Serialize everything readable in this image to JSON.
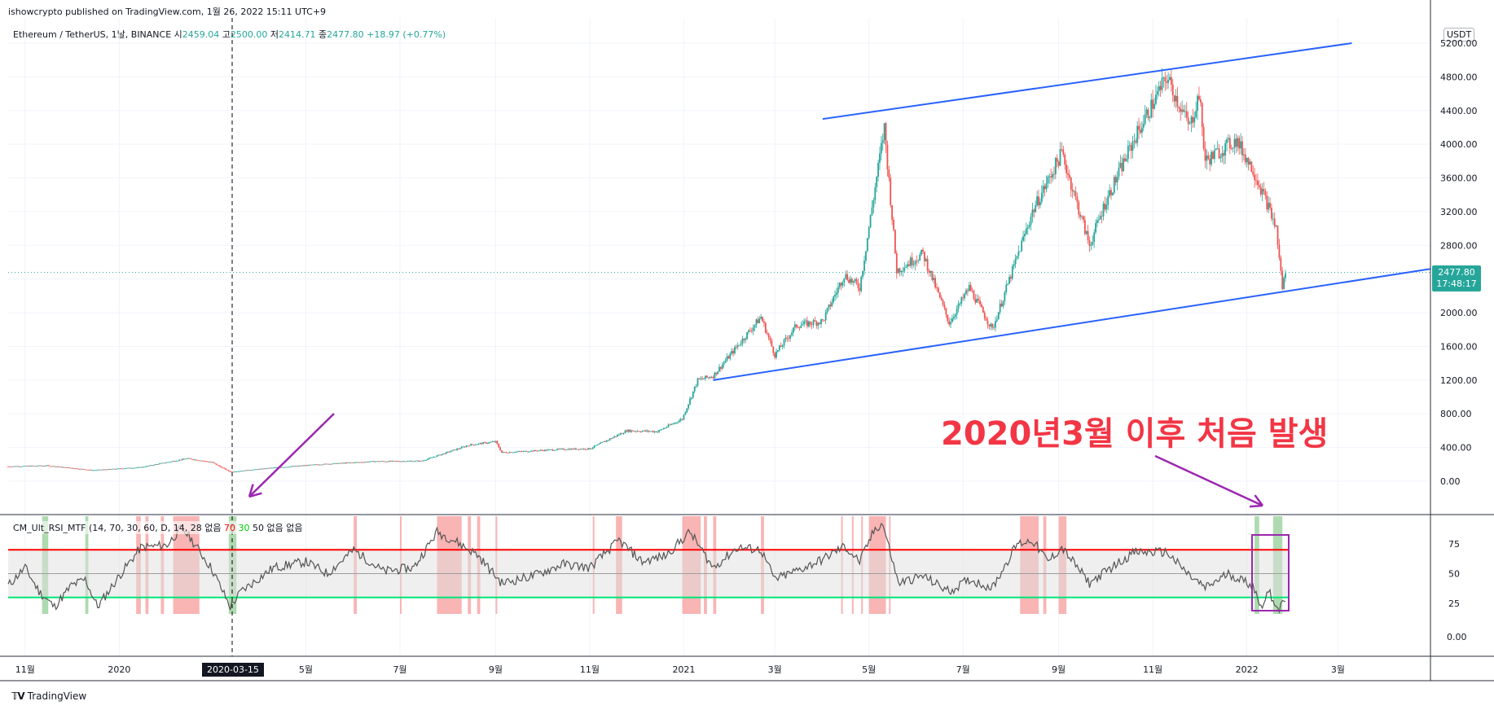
{
  "publish_line": "ishowcrypto published on TradingView.com, 1월 26, 2022 15:11 UTC+9",
  "legend": {
    "symbol": "Ethereum / TetherUS, 1날, BINANCE",
    "open_label": "시",
    "open": "2459.04",
    "high_label": "고",
    "high": "2500.00",
    "low_label": "저",
    "low": "2414.71",
    "close_label": "종",
    "close": "2477.80",
    "change": "+18.97 (+0.77%)"
  },
  "currency": "USDT",
  "last_price": {
    "value": "2477.80",
    "countdown": "17:48:17",
    "color": "#26a69a"
  },
  "crosshair_date": "2020-03-15",
  "annotation": "2020년3월 이후 처음 발생",
  "indicator_legend": {
    "name": "CM_Ult_RSI_MTF",
    "params": "(14, 70, 30, 60, D, 14, 28",
    "none1": "없음",
    "v70": "70",
    "v30": "30",
    "v50": "50",
    "none2": "없음",
    "none3": "없음"
  },
  "footer": {
    "brand": "TradingView"
  },
  "colors": {
    "up": "#26a69a",
    "down": "#ef5350",
    "trendline": "#2962ff",
    "arrow": "#9c27b0",
    "rsi_line": "#555555",
    "overbought": "#ff0000",
    "oversold": "#00e676",
    "band_fill": "#e0e0e0",
    "highlight_red": "#f8a1a1",
    "highlight_green": "#a5d6a7"
  },
  "chart_data": [
    {
      "type": "candlestick",
      "title": "Ethereum / TetherUS, 1날, BINANCE",
      "y_axis_ticks": [
        0,
        400,
        800,
        1200,
        1600,
        2000,
        2400,
        2800,
        3200,
        3600,
        4000,
        4400,
        4800,
        5200
      ],
      "y_tick_labels": [
        "0.00",
        "400.00",
        "800.00",
        "1200.00",
        "1600.00",
        "2000.00",
        "2400.00",
        "2800.00",
        "3200.00",
        "3600.00",
        "4000.00",
        "4400.00",
        "4800.00",
        "5200.00"
      ],
      "ylim": [
        -300,
        5300
      ],
      "x_tick_labels": [
        "11월",
        "2020",
        "5월",
        "7월",
        "9월",
        "11월",
        "2021",
        "3월",
        "5월",
        "7월",
        "9월",
        "11월",
        "2022",
        "3월"
      ],
      "x_tick_dates": [
        "2019-11-01",
        "2020-01-01",
        "2020-05-01",
        "2020-07-01",
        "2020-09-01",
        "2020-11-01",
        "2021-01-01",
        "2021-03-01",
        "2021-05-01",
        "2021-07-01",
        "2021-09-01",
        "2021-11-01",
        "2022-01-01",
        "2022-03-01"
      ],
      "xlim": [
        "2019-10-21",
        "2022-04-30"
      ],
      "price_points": [
        [
          "2019-10-21",
          175
        ],
        [
          "2019-11-15",
          185
        ],
        [
          "2019-12-15",
          130
        ],
        [
          "2020-01-15",
          165
        ],
        [
          "2020-02-14",
          270
        ],
        [
          "2020-03-01",
          225
        ],
        [
          "2020-03-13",
          110
        ],
        [
          "2020-04-10",
          160
        ],
        [
          "2020-05-10",
          200
        ],
        [
          "2020-06-15",
          235
        ],
        [
          "2020-07-15",
          240
        ],
        [
          "2020-07-28",
          320
        ],
        [
          "2020-08-15",
          430
        ],
        [
          "2020-09-01",
          470
        ],
        [
          "2020-09-05",
          340
        ],
        [
          "2020-10-15",
          380
        ],
        [
          "2020-11-01",
          385
        ],
        [
          "2020-11-25",
          600
        ],
        [
          "2020-12-15",
          590
        ],
        [
          "2020-12-31",
          740
        ],
        [
          "2021-01-10",
          1200
        ],
        [
          "2021-01-20",
          1250
        ],
        [
          "2021-02-20",
          1950
        ],
        [
          "2021-03-01",
          1500
        ],
        [
          "2021-03-15",
          1850
        ],
        [
          "2021-04-01",
          1900
        ],
        [
          "2021-04-15",
          2450
        ],
        [
          "2021-04-25",
          2300
        ],
        [
          "2021-05-11",
          4200
        ],
        [
          "2021-05-19",
          2500
        ],
        [
          "2021-06-05",
          2700
        ],
        [
          "2021-06-22",
          1880
        ],
        [
          "2021-07-05",
          2300
        ],
        [
          "2021-07-20",
          1800
        ],
        [
          "2021-08-15",
          3200
        ],
        [
          "2021-09-03",
          3900
        ],
        [
          "2021-09-21",
          2800
        ],
        [
          "2021-10-01",
          3300
        ],
        [
          "2021-10-21",
          4100
        ],
        [
          "2021-11-10",
          4800
        ],
        [
          "2021-11-25",
          4200
        ],
        [
          "2021-12-01",
          4600
        ],
        [
          "2021-12-05",
          3800
        ],
        [
          "2021-12-25",
          4050
        ],
        [
          "2022-01-05",
          3700
        ],
        [
          "2022-01-14",
          3300
        ],
        [
          "2022-01-20",
          3000
        ],
        [
          "2022-01-24",
          2300
        ],
        [
          "2022-01-26",
          2477.8
        ]
      ],
      "trendlines": [
        {
          "from": [
            "2021-04-01",
            4300
          ],
          "to": [
            "2022-03-10",
            5200
          ]
        },
        {
          "from": [
            "2021-01-20",
            1200
          ],
          "to": [
            "2022-04-30",
            2520
          ]
        }
      ]
    },
    {
      "type": "line",
      "title": "CM_Ult_RSI_MTF",
      "y_axis_ticks": [
        25,
        50,
        75
      ],
      "ylim": [
        10,
        95
      ],
      "levels": {
        "overbought": 70,
        "mid": 50,
        "oversold": 30
      },
      "xlim": [
        "2019-10-21",
        "2022-04-30"
      ],
      "series": [
        {
          "values": [
            [
              "2019-10-21",
              40
            ],
            [
              "2019-11-01",
              55
            ],
            [
              "2019-11-10",
              35
            ],
            [
              "2019-11-20",
              22
            ],
            [
              "2019-12-01",
              40
            ],
            [
              "2019-12-10",
              45
            ],
            [
              "2019-12-18",
              22
            ],
            [
              "2020-01-01",
              48
            ],
            [
              "2020-01-15",
              72
            ],
            [
              "2020-02-01",
              74
            ],
            [
              "2020-02-10",
              88
            ],
            [
              "2020-02-15",
              82
            ],
            [
              "2020-03-01",
              54
            ],
            [
              "2020-03-13",
              22
            ],
            [
              "2020-03-20",
              35
            ],
            [
              "2020-04-10",
              55
            ],
            [
              "2020-05-01",
              60
            ],
            [
              "2020-05-15",
              50
            ],
            [
              "2020-06-01",
              70
            ],
            [
              "2020-06-20",
              52
            ],
            [
              "2020-07-10",
              55
            ],
            [
              "2020-07-25",
              85
            ],
            [
              "2020-08-05",
              78
            ],
            [
              "2020-08-20",
              66
            ],
            [
              "2020-09-05",
              42
            ],
            [
              "2020-09-25",
              48
            ],
            [
              "2020-10-15",
              58
            ],
            [
              "2020-11-01",
              55
            ],
            [
              "2020-11-20",
              78
            ],
            [
              "2020-12-05",
              60
            ],
            [
              "2020-12-20",
              65
            ],
            [
              "2021-01-05",
              85
            ],
            [
              "2021-01-20",
              55
            ],
            [
              "2021-02-05",
              72
            ],
            [
              "2021-02-20",
              70
            ],
            [
              "2021-03-01",
              45
            ],
            [
              "2021-03-20",
              55
            ],
            [
              "2021-04-01",
              62
            ],
            [
              "2021-04-15",
              73
            ],
            [
              "2021-04-25",
              60
            ],
            [
              "2021-05-05",
              88
            ],
            [
              "2021-05-10",
              92
            ],
            [
              "2021-05-20",
              42
            ],
            [
              "2021-06-05",
              48
            ],
            [
              "2021-06-22",
              35
            ],
            [
              "2021-07-05",
              45
            ],
            [
              "2021-07-20",
              38
            ],
            [
              "2021-08-05",
              75
            ],
            [
              "2021-08-15",
              78
            ],
            [
              "2021-08-25",
              60
            ],
            [
              "2021-09-03",
              72
            ],
            [
              "2021-09-21",
              42
            ],
            [
              "2021-10-05",
              55
            ],
            [
              "2021-10-20",
              68
            ],
            [
              "2021-11-10",
              68
            ],
            [
              "2021-11-25",
              48
            ],
            [
              "2021-12-05",
              38
            ],
            [
              "2021-12-20",
              50
            ],
            [
              "2022-01-05",
              40
            ],
            [
              "2022-01-10",
              22
            ],
            [
              "2022-01-15",
              35
            ],
            [
              "2022-01-22",
              20
            ],
            [
              "2022-01-26",
              28
            ]
          ]
        }
      ],
      "red_bands": [
        [
          "2020-01-12",
          "2020-01-15"
        ],
        [
          "2020-01-18",
          "2020-01-20"
        ],
        [
          "2020-01-28",
          "2020-01-30"
        ],
        [
          "2020-02-05",
          "2020-02-22"
        ],
        [
          "2020-06-01",
          "2020-06-03"
        ],
        [
          "2020-07-01",
          "2020-07-02"
        ],
        [
          "2020-07-25",
          "2020-08-10"
        ],
        [
          "2020-08-14",
          "2020-08-16"
        ],
        [
          "2020-08-20",
          "2020-08-22"
        ],
        [
          "2020-09-01",
          "2020-09-02"
        ],
        [
          "2020-11-03",
          "2020-11-04"
        ],
        [
          "2020-11-18",
          "2020-11-22"
        ],
        [
          "2020-12-31",
          "2021-01-12"
        ],
        [
          "2021-01-14",
          "2021-01-16"
        ],
        [
          "2021-01-20",
          "2021-01-22"
        ],
        [
          "2021-02-20",
          "2021-02-22"
        ],
        [
          "2021-04-13",
          "2021-04-14"
        ],
        [
          "2021-04-20",
          "2021-04-21"
        ],
        [
          "2021-04-26",
          "2021-04-27"
        ],
        [
          "2021-05-01",
          "2021-05-12"
        ],
        [
          "2021-05-14",
          "2021-05-15"
        ],
        [
          "2021-08-07",
          "2021-08-19"
        ],
        [
          "2021-08-22",
          "2021-08-24"
        ],
        [
          "2021-09-01",
          "2021-09-06"
        ]
      ],
      "green_bands": [
        [
          "2019-11-12",
          "2019-11-16"
        ],
        [
          "2019-12-10",
          "2019-12-12"
        ],
        [
          "2020-03-12",
          "2020-03-17"
        ],
        [
          "2022-01-06",
          "2022-01-09"
        ],
        [
          "2022-01-18",
          "2022-01-24"
        ]
      ]
    }
  ]
}
